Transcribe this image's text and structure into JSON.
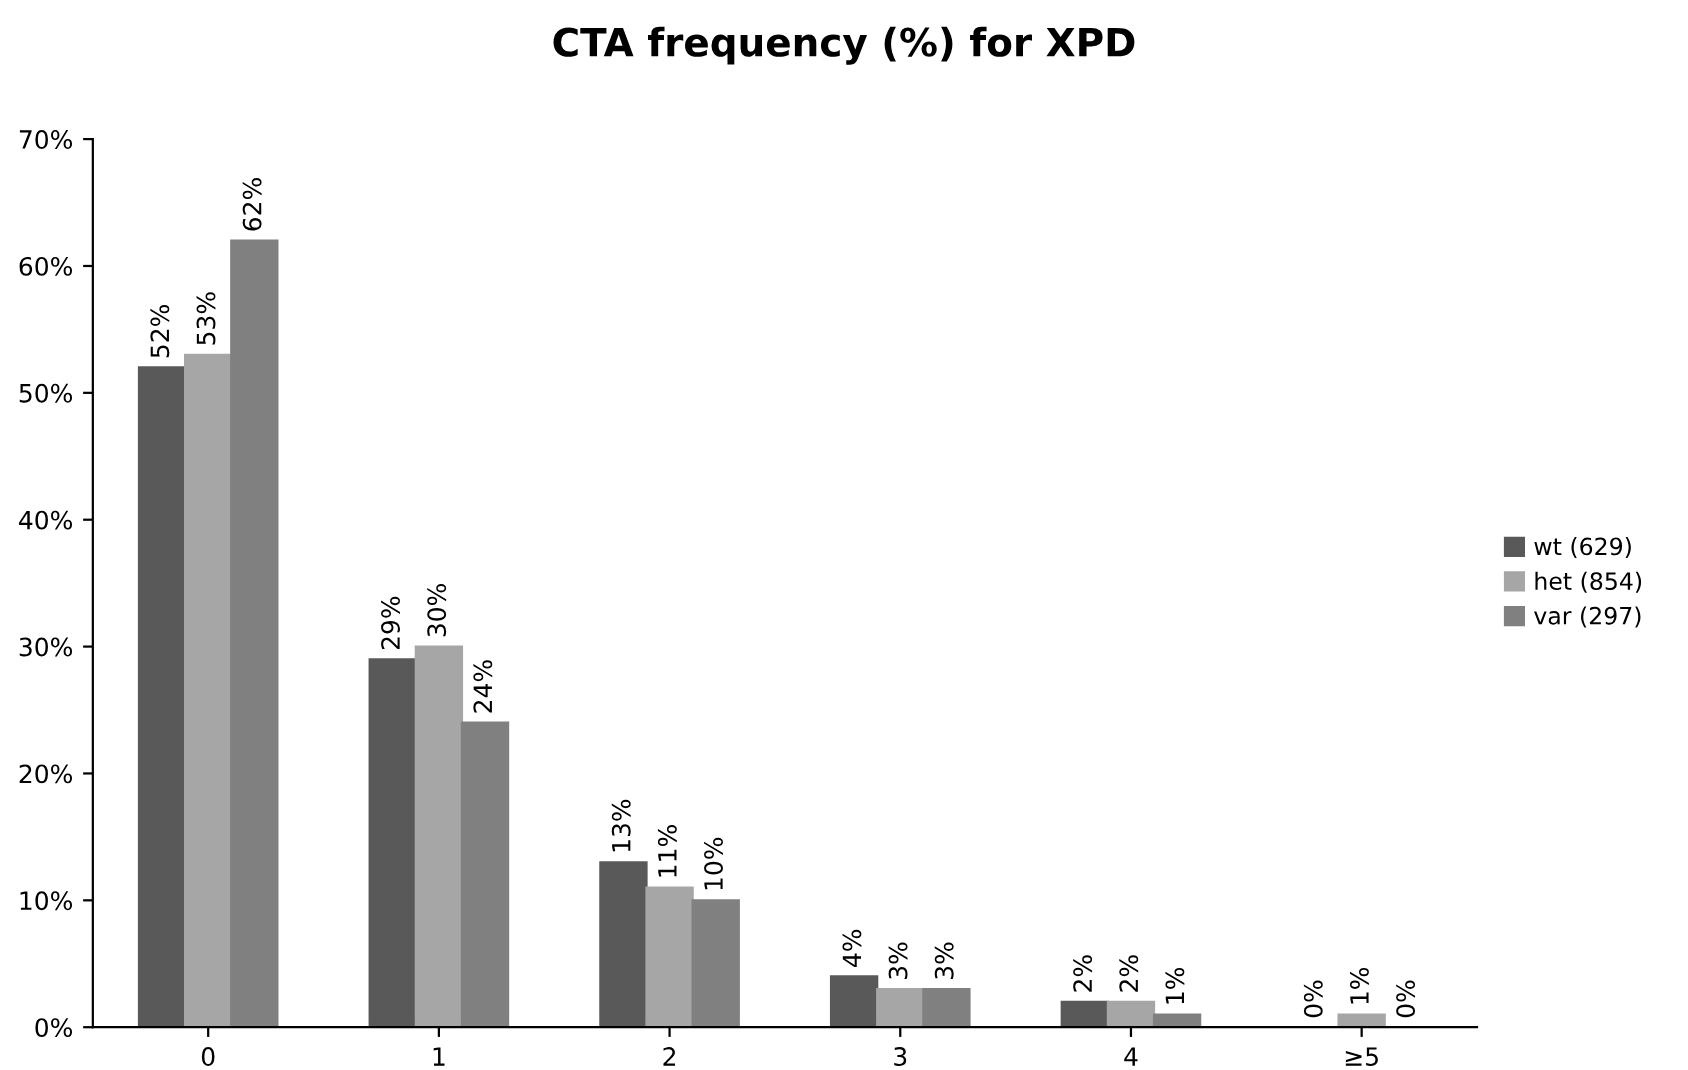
{
  "chart_data": {
    "type": "bar",
    "title": "CTA frequency (%) for XPD",
    "categories": [
      "0",
      "1",
      "2",
      "3",
      "4",
      "≥5"
    ],
    "series": [
      {
        "name": "wt (629)",
        "color": "#595959",
        "values": [
          52,
          29,
          13,
          4,
          2,
          0
        ],
        "value_labels": [
          "52%",
          "29%",
          "13%",
          "4%",
          "2%",
          "0%"
        ]
      },
      {
        "name": "het (854)",
        "color": "#a6a6a6",
        "values": [
          53,
          30,
          11,
          3,
          2,
          1
        ],
        "value_labels": [
          "53%",
          "30%",
          "11%",
          "3%",
          "2%",
          "1%"
        ]
      },
      {
        "name": "var (297)",
        "color": "#808080",
        "values": [
          62,
          24,
          10,
          3,
          1,
          0
        ],
        "value_labels": [
          "62%",
          "24%",
          "10%",
          "3%",
          "1%",
          "0%"
        ]
      }
    ],
    "ylim": [
      0,
      70
    ],
    "yticks": [
      {
        "value": 0,
        "label": "0%"
      },
      {
        "value": 10,
        "label": "10%"
      },
      {
        "value": 20,
        "label": "20%"
      },
      {
        "value": 30,
        "label": "30%"
      },
      {
        "value": 40,
        "label": "40%"
      },
      {
        "value": 50,
        "label": "50%"
      },
      {
        "value": 60,
        "label": "60%"
      },
      {
        "value": 70,
        "label": "70%"
      }
    ],
    "grid": false,
    "legend": "right"
  }
}
